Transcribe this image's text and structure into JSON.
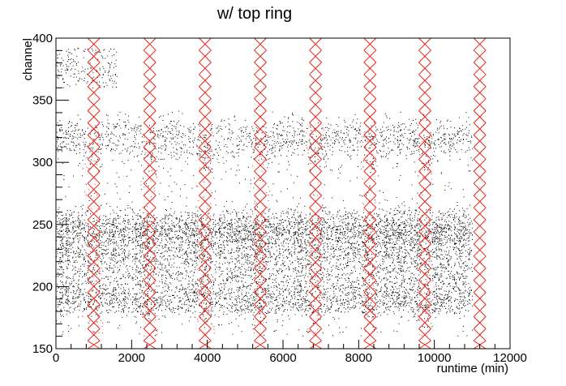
{
  "chart_data": {
    "type": "scatter",
    "title": "w/ top ring",
    "xlabel": "runtime (min)",
    "ylabel": "channel",
    "xlim": [
      0,
      12000
    ],
    "ylim": [
      150,
      400
    ],
    "x_ticks": [
      0,
      2000,
      4000,
      6000,
      8000,
      10000,
      12000
    ],
    "y_ticks": [
      150,
      200,
      250,
      300,
      350,
      400
    ],
    "grid": false,
    "legend": "none",
    "colors": {
      "points": "#000000",
      "marked": "#e8231a",
      "axes": "#000000"
    },
    "series": [
      {
        "role": "channel hits",
        "x_range": [
          0,
          11000
        ],
        "bands": [
          {
            "center": 320,
            "halfwidth": 12,
            "density": "high",
            "y_extent_min": 300
          },
          {
            "center": 252,
            "halfwidth": 8,
            "density": "high"
          },
          {
            "center": 242,
            "halfwidth": 7,
            "density": "high"
          },
          {
            "center": 228,
            "halfwidth": 8,
            "density": "high"
          },
          {
            "center": 213,
            "halfwidth": 7,
            "density": "medium"
          },
          {
            "center": 196,
            "halfwidth": 9,
            "density": "high"
          },
          {
            "center": 185,
            "halfwidth": 6,
            "density": "medium"
          }
        ],
        "early_cluster": {
          "x_range": [
            0,
            1600
          ],
          "y_range": [
            360,
            392
          ]
        }
      }
    ],
    "excluded_windows": [
      {
        "x_center": 1000,
        "x_width": 320
      },
      {
        "x_center": 2480,
        "x_width": 320
      },
      {
        "x_center": 3940,
        "x_width": 320
      },
      {
        "x_center": 5400,
        "x_width": 320
      },
      {
        "x_center": 6860,
        "x_width": 320
      },
      {
        "x_center": 8300,
        "x_width": 320
      },
      {
        "x_center": 9750,
        "x_width": 320
      },
      {
        "x_center": 11200,
        "x_width": 320
      }
    ],
    "dip_events_x": [
      1000,
      2480,
      3940,
      5400,
      6860,
      8300,
      9750
    ]
  }
}
